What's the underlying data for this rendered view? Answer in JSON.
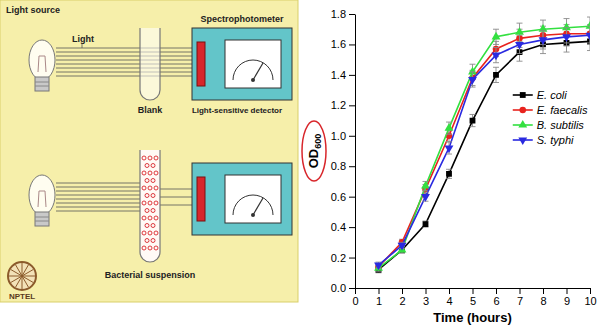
{
  "diagram": {
    "light_source": "Light source",
    "light": "Light",
    "spectrophotometer": "Spectrophotometer",
    "detector": "Light-sensitive detector",
    "blank": "Blank",
    "suspension": "Bacterial suspension",
    "logo": "NPTEL"
  },
  "chart_data": {
    "type": "line",
    "xlabel": "Time (hours)",
    "ylabel": "OD600",
    "x": [
      1,
      2,
      3,
      4,
      5,
      6,
      7,
      8,
      9,
      10
    ],
    "xlim": [
      0,
      10
    ],
    "xticks": [
      0,
      1,
      2,
      3,
      4,
      5,
      6,
      7,
      8,
      9,
      10
    ],
    "ylim": [
      0,
      1.8
    ],
    "yticks": [
      {
        "value": 0,
        "label": "0.0"
      },
      0.2,
      0.4,
      0.6,
      0.8,
      {
        "value": 1,
        "label": "1.0"
      },
      1.2,
      1.4,
      1.6,
      1.8
    ],
    "legend": "right",
    "series": [
      {
        "name": "E. coli",
        "color": "#000000",
        "marker": "square",
        "line_style": "solid",
        "values": [
          0.12,
          0.25,
          0.42,
          0.75,
          1.1,
          1.4,
          1.55,
          1.6,
          1.61,
          1.62
        ],
        "errors": [
          0.02,
          0.02,
          0.02,
          0.03,
          0.04,
          0.05,
          0.06,
          0.06,
          0.06,
          0.06
        ]
      },
      {
        "name": "E. faecalis",
        "color": "#e8231e",
        "marker": "circle",
        "line_style": "solid",
        "values": [
          0.14,
          0.3,
          0.65,
          1.0,
          1.38,
          1.57,
          1.64,
          1.66,
          1.67,
          1.67
        ],
        "errors": [
          0.02,
          0.02,
          0.03,
          0.04,
          0.05,
          0.05,
          0.06,
          0.06,
          0.06,
          0.06
        ]
      },
      {
        "name": "B. subtilis",
        "color": "#33e040",
        "marker": "triangle-up",
        "line_style": "solid",
        "values": [
          0.13,
          0.25,
          0.67,
          1.05,
          1.42,
          1.65,
          1.68,
          1.7,
          1.71,
          1.72
        ],
        "errors": [
          0.02,
          0.02,
          0.03,
          0.04,
          0.05,
          0.05,
          0.06,
          0.06,
          0.06,
          0.06
        ]
      },
      {
        "name": "S. typhi",
        "color": "#2a2ae0",
        "marker": "triangle-down",
        "line_style": "solid",
        "values": [
          0.15,
          0.28,
          0.6,
          0.92,
          1.37,
          1.53,
          1.6,
          1.63,
          1.65,
          1.66
        ],
        "errors": [
          0.02,
          0.02,
          0.03,
          0.04,
          0.05,
          0.05,
          0.06,
          0.06,
          0.06,
          0.06
        ]
      }
    ]
  }
}
